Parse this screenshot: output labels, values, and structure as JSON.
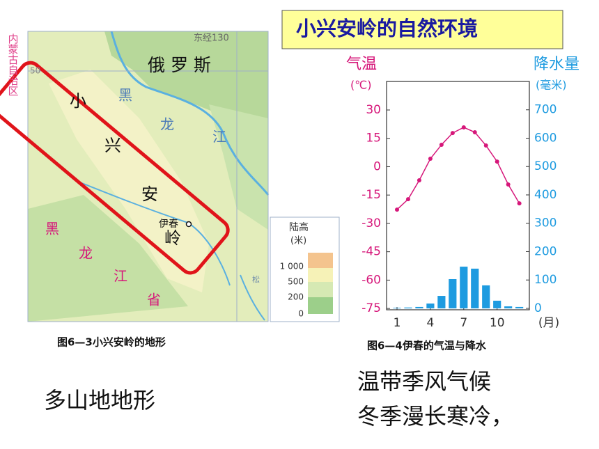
{
  "title": "小兴安岭的自然环境",
  "map": {
    "labels": [
      "东经130",
      "50",
      "内蒙古自治区",
      "俄 罗 斯",
      "黑",
      "龙",
      "江",
      "小",
      "兴",
      "安",
      "岭",
      "伊春",
      "黑",
      "龙",
      "江",
      "省",
      "松"
    ],
    "legend": {
      "title": "陆高",
      "unit": "(米)",
      "levels": [
        "1 000",
        "500",
        "200",
        "0"
      ]
    }
  },
  "captions": {
    "map": "图6—3小兴安岭的地形",
    "chart": "图6—4伊春的气温与降水"
  },
  "notes": {
    "terrain": "多山地地形",
    "climate": [
      "温带季风气候",
      "冬季漫长寒冷，"
    ]
  },
  "chart_data": {
    "type": "combo",
    "ylabel": [
      "气温",
      "(℃)"
    ],
    "y2label": [
      "降水量",
      "(毫米)"
    ],
    "xlabel": "(月)",
    "x": [
      1,
      2,
      3,
      4,
      5,
      6,
      7,
      8,
      9,
      10,
      11,
      12
    ],
    "xlim": [
      0.06,
      12.9
    ],
    "xticks": [
      1,
      4,
      7,
      10
    ],
    "ylim": [
      -75.7,
      45.1
    ],
    "yticks": [
      30,
      15,
      0,
      -15,
      -30,
      -45,
      -60,
      -75
    ],
    "y2lim": [
      -5,
      800
    ],
    "y2ticks": [
      700,
      600,
      500,
      400,
      300,
      200,
      100,
      0
    ],
    "series": [
      {
        "name": "气温",
        "type": "line",
        "axis": "y",
        "color": "#d6177a",
        "values": [
          -22.7,
          -17.2,
          -7.2,
          4.2,
          11.6,
          17.8,
          20.8,
          18.2,
          11.2,
          2.7,
          -9.4,
          -19.4
        ]
      },
      {
        "name": "降水量",
        "type": "bar",
        "axis": "y2",
        "color": "#1e9be0",
        "values": [
          2,
          3,
          5,
          17,
          44,
          103,
          147,
          140,
          81,
          27,
          7,
          5
        ]
      }
    ]
  }
}
